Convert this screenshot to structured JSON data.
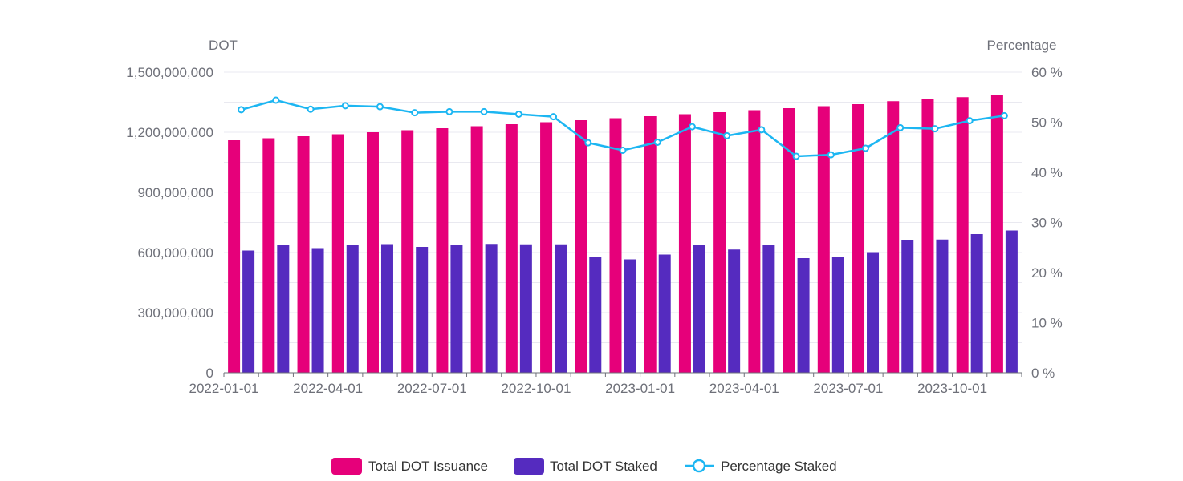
{
  "chart_data": {
    "type": "bar",
    "x_axis": {
      "tick_labels": [
        "2022-01-01",
        "2022-04-01",
        "2022-07-01",
        "2022-10-01",
        "2023-01-01",
        "2023-04-01",
        "2023-07-01",
        "2023-10-01"
      ]
    },
    "categories": [
      "2022-01-01",
      "2022-02-01",
      "2022-03-01",
      "2022-04-01",
      "2022-05-01",
      "2022-06-01",
      "2022-07-01",
      "2022-08-01",
      "2022-09-01",
      "2022-10-01",
      "2022-11-01",
      "2022-12-01",
      "2023-01-01",
      "2023-02-01",
      "2023-03-01",
      "2023-04-01",
      "2023-05-01",
      "2023-06-01",
      "2023-07-01",
      "2023-08-01",
      "2023-09-01",
      "2023-10-01",
      "2023-11-01"
    ],
    "y_left": {
      "name": "DOT",
      "min": 0,
      "max": 1500000000,
      "tick_labels": [
        "0",
        "300,000,000",
        "600,000,000",
        "900,000,000",
        "1,200,000,000",
        "1,500,000,000"
      ],
      "tick_values": [
        0,
        300000000,
        600000000,
        900000000,
        1200000000,
        1500000000
      ]
    },
    "y_right": {
      "name": "Percentage",
      "min": 0,
      "max": 60,
      "tick_labels": [
        "0 %",
        "10 %",
        "20 %",
        "30 %",
        "40 %",
        "50 %",
        "60 %"
      ],
      "tick_values": [
        0,
        10,
        20,
        30,
        40,
        50,
        60
      ]
    },
    "series": [
      {
        "name": "Total DOT Issuance",
        "type": "bar",
        "axis": "left",
        "color": "#e6007a",
        "values": [
          1160000000,
          1170000000,
          1180000000,
          1190000000,
          1200000000,
          1210000000,
          1220000000,
          1230000000,
          1240000000,
          1250000000,
          1260000000,
          1270000000,
          1280000000,
          1290000000,
          1300000000,
          1310000000,
          1320000000,
          1330000000,
          1340000000,
          1355000000,
          1365000000,
          1375000000,
          1385000000
        ]
      },
      {
        "name": "Total DOT Staked",
        "type": "bar",
        "axis": "left",
        "color": "#552bbf",
        "values": [
          610000000,
          640000000,
          622000000,
          637000000,
          642000000,
          628000000,
          637000000,
          643000000,
          641000000,
          641000000,
          578000000,
          566000000,
          590000000,
          636000000,
          615000000,
          637000000,
          572000000,
          580000000,
          602000000,
          664000000,
          665000000,
          692000000,
          710000000
        ]
      },
      {
        "name": "Percentage Staked",
        "type": "line",
        "axis": "right",
        "color": "#1cb6f2",
        "values": [
          52.5,
          54.4,
          52.6,
          53.3,
          53.1,
          51.9,
          52.1,
          52.1,
          51.6,
          51.1,
          45.9,
          44.4,
          46.0,
          49.1,
          47.3,
          48.5,
          43.2,
          43.5,
          44.8,
          48.9,
          48.7,
          50.3,
          51.3
        ]
      }
    ],
    "legend_position": "bottom-center",
    "grid": true
  }
}
